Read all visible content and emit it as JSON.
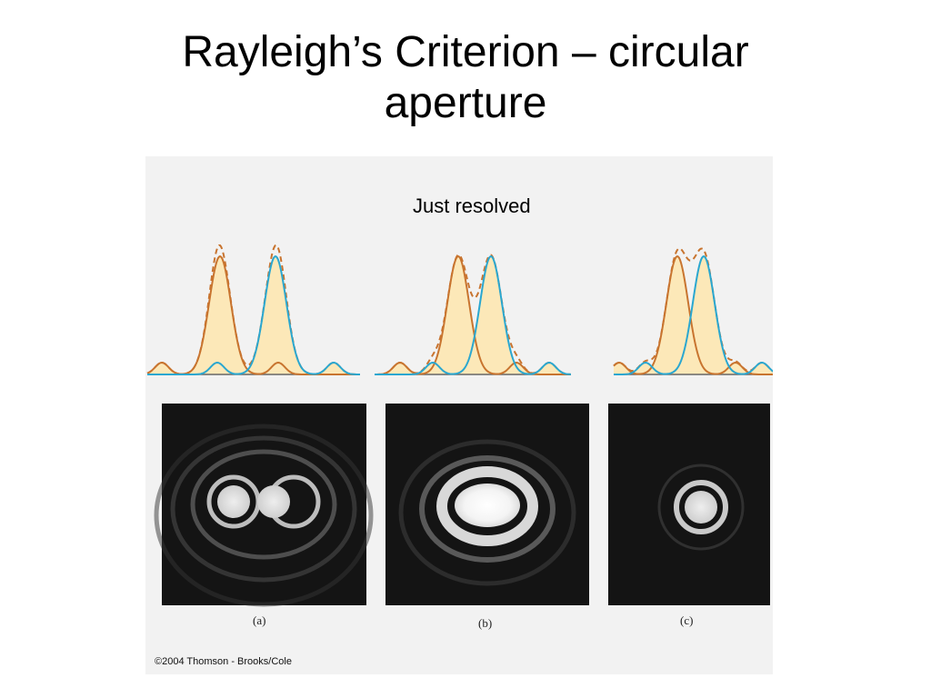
{
  "slide": {
    "title_line1": "Rayleigh’s Criterion – circular",
    "title_line2": "aperture",
    "annotation": "Just resolved",
    "copyright": "©2004 Thomson - Brooks/Cole"
  },
  "figure": {
    "panels": [
      {
        "label": "(a)",
        "separation": "well resolved"
      },
      {
        "label": "(b)",
        "separation": "just resolved"
      },
      {
        "label": "(c)",
        "separation": "not resolved"
      }
    ],
    "colors": {
      "source_1": "#c8742f",
      "source_2": "#2aa7d0",
      "sum_dashed": "#c8742f",
      "fill": "#fce8b8",
      "baseline": "#666666",
      "pattern_bg": "#141414"
    }
  }
}
